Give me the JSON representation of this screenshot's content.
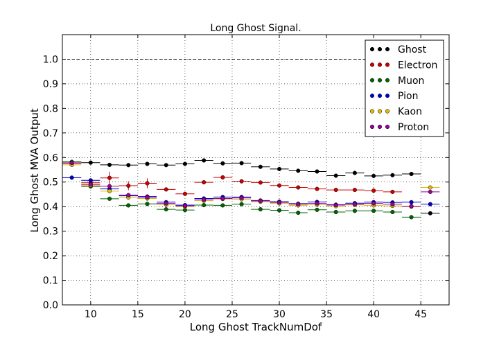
{
  "chart_data": {
    "type": "scatter",
    "title": "Long Ghost Signal.",
    "xlabel": "Long Ghost TrackNumDof",
    "ylabel": "Long Ghost MVA Output",
    "xlim": [
      7,
      48
    ],
    "ylim": [
      0.0,
      1.1
    ],
    "x_ticks": [
      10,
      15,
      20,
      25,
      30,
      35,
      40,
      45
    ],
    "y_ticks": [
      0.0,
      0.1,
      0.2,
      0.3,
      0.4,
      0.5,
      0.6,
      0.7,
      0.8,
      0.9,
      1.0
    ],
    "grid": true,
    "reference_line": 1.0,
    "legend_position": "top-right",
    "bin_half_width": 1,
    "x": [
      8,
      10,
      12,
      14,
      16,
      18,
      20,
      22,
      24,
      26,
      28,
      30,
      32,
      34,
      36,
      38,
      40,
      42,
      44,
      46
    ],
    "series": [
      {
        "name": "Ghost",
        "color": "#000000",
        "values": [
          0.582,
          0.579,
          0.57,
          0.569,
          0.574,
          0.569,
          0.574,
          0.588,
          0.576,
          0.577,
          0.562,
          0.553,
          0.546,
          0.543,
          0.526,
          0.537,
          0.525,
          0.528,
          0.533,
          0.373
        ],
        "errors": [
          0.005,
          0.003,
          0.003,
          0.003,
          0.003,
          0.003,
          0.003,
          0.003,
          0.003,
          0.003,
          0.003,
          0.003,
          0.003,
          0.003,
          0.003,
          0.003,
          0.003,
          0.003,
          0.003,
          0.003
        ]
      },
      {
        "name": "Electron",
        "color": "#cc0000",
        "values": [
          0.576,
          0.497,
          0.517,
          0.485,
          0.495,
          0.47,
          0.452,
          0.499,
          0.519,
          0.503,
          0.498,
          0.486,
          0.478,
          0.472,
          0.468,
          0.468,
          0.465,
          0.46,
          null,
          null
        ],
        "errors": [
          0.01,
          0.008,
          0.025,
          0.018,
          0.02,
          0.008,
          0.006,
          0.006,
          0.006,
          0.006,
          0.006,
          0.006,
          0.006,
          0.006,
          0.006,
          0.006,
          0.006,
          0.008,
          0,
          0
        ]
      },
      {
        "name": "Muon",
        "color": "#006600",
        "values": [
          0.582,
          0.482,
          0.432,
          0.405,
          0.411,
          0.389,
          0.386,
          0.406,
          0.405,
          0.41,
          0.389,
          0.385,
          0.375,
          0.387,
          0.378,
          0.383,
          0.383,
          0.378,
          0.357,
          null
        ],
        "errors": [
          0.008,
          0.006,
          0.005,
          0.005,
          0.005,
          0.005,
          0.005,
          0.005,
          0.005,
          0.005,
          0.005,
          0.005,
          0.005,
          0.005,
          0.005,
          0.005,
          0.005,
          0.005,
          0.008,
          0
        ]
      },
      {
        "name": "Pion",
        "color": "#0000cc",
        "values": [
          0.518,
          0.507,
          0.472,
          0.444,
          0.441,
          0.418,
          0.406,
          0.433,
          0.439,
          0.439,
          0.425,
          0.42,
          0.412,
          0.419,
          0.408,
          0.414,
          0.418,
          0.417,
          0.418,
          0.41
        ],
        "errors": [
          0.004,
          0.003,
          0.003,
          0.003,
          0.003,
          0.003,
          0.003,
          0.003,
          0.003,
          0.003,
          0.003,
          0.003,
          0.003,
          0.003,
          0.003,
          0.003,
          0.003,
          0.003,
          0.003,
          0.003
        ]
      },
      {
        "name": "Kaon",
        "color": "#ddbb00",
        "values": [
          0.57,
          0.486,
          0.463,
          0.437,
          0.433,
          0.408,
          0.4,
          0.424,
          0.431,
          0.43,
          0.42,
          0.413,
          0.405,
          0.408,
          0.402,
          0.407,
          0.405,
          0.403,
          0.4,
          0.478
        ],
        "errors": [
          0.006,
          0.005,
          0.005,
          0.005,
          0.005,
          0.005,
          0.005,
          0.005,
          0.005,
          0.005,
          0.005,
          0.005,
          0.005,
          0.005,
          0.005,
          0.005,
          0.005,
          0.005,
          0.005,
          0.006
        ]
      },
      {
        "name": "Proton",
        "color": "#990099",
        "values": [
          0.578,
          0.49,
          0.483,
          0.447,
          0.438,
          0.413,
          0.403,
          0.428,
          0.433,
          0.435,
          0.423,
          0.417,
          0.41,
          0.413,
          0.406,
          0.41,
          0.413,
          0.41,
          0.402,
          0.46
        ],
        "errors": [
          0.006,
          0.005,
          0.005,
          0.005,
          0.005,
          0.005,
          0.005,
          0.005,
          0.005,
          0.005,
          0.005,
          0.005,
          0.005,
          0.005,
          0.005,
          0.005,
          0.005,
          0.005,
          0.005,
          0.006
        ]
      }
    ]
  }
}
